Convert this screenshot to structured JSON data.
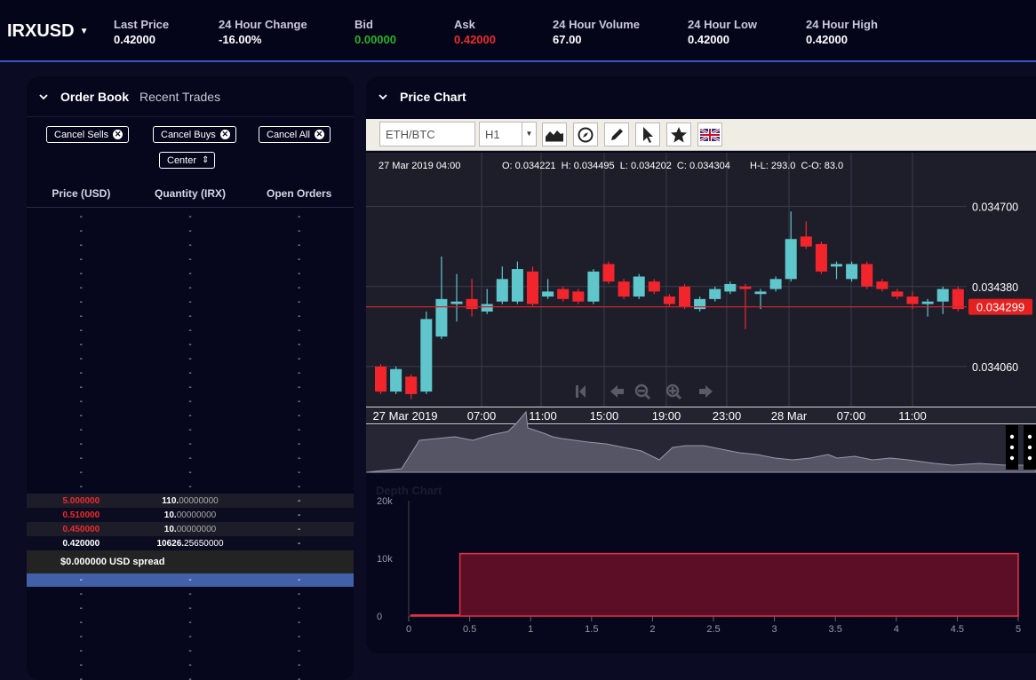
{
  "header": {
    "pair": "IRXUSD",
    "stats": [
      {
        "label": "Last Price",
        "value": "0.42000",
        "color": "#ffffff"
      },
      {
        "label": "24 Hour Change",
        "value": "-16.00%",
        "color": "#ffffff"
      },
      {
        "label": "Bid",
        "value": "0.00000",
        "color": "#27b326"
      },
      {
        "label": "Ask",
        "value": "0.42000",
        "color": "#ee2b2b"
      },
      {
        "label": "24 Hour Volume",
        "value": "67.00",
        "color": "#ffffff"
      },
      {
        "label": "24 Hour Low",
        "value": "0.42000",
        "color": "#ffffff"
      },
      {
        "label": "24 Hour High",
        "value": "0.42000",
        "color": "#ffffff"
      }
    ]
  },
  "order_book": {
    "tab_active": "Order Book",
    "tab_inactive": "Recent Trades",
    "cancel_sells": "Cancel Sells",
    "cancel_buys": "Cancel Buys",
    "cancel_all": "Cancel All",
    "center": "Center",
    "col_price": "Price (USD)",
    "col_qty": "Quantity (IRX)",
    "col_open": "Open Orders",
    "dash": "-",
    "sells": [
      {
        "price": "5.000000",
        "qty_int": "110.",
        "qty_dec": "00000000",
        "open": "-"
      },
      {
        "price": "0.510000",
        "qty_int": "10.",
        "qty_dec": "00000000",
        "open": "-"
      },
      {
        "price": "0.450000",
        "qty_int": "10.",
        "qty_dec": "00000000",
        "open": "-"
      },
      {
        "price": "0.420000",
        "qty_int": "10626.",
        "qty_dec": "25650000",
        "open": "-"
      }
    ],
    "spread": "$0.000000 USD spread"
  },
  "price_chart": {
    "title": "Price Chart",
    "symbol": "ETH/BTC",
    "interval": "H1",
    "icons": [
      "area-chart-icon",
      "compass-icon",
      "pencil-icon",
      "cursor-icon",
      "star-icon",
      "uk-flag-icon"
    ],
    "info_date": "27 Mar 2019 04:00",
    "info_ohlc": "O: 0.034221  H: 0.034495  L: 0.034202  C: 0.034304",
    "info_hl": "H-L: 293.0  C-O: 83.0",
    "y_ticks": [
      "0.034700",
      "0.034380",
      "0.034060"
    ],
    "current_price": "0.034299",
    "x_ticks": [
      "27 Mar 2019",
      "07:00",
      "11:00",
      "15:00",
      "19:00",
      "23:00",
      "28 Mar",
      "07:00",
      "11:00"
    ]
  },
  "chart_data": {
    "type": "candlestick",
    "ylim": [
      0.0339,
      0.03483
    ],
    "current": 0.034299,
    "candles": [
      {
        "o": 0.03406,
        "c": 0.03396,
        "h": 0.03407,
        "l": 0.03395
      },
      {
        "o": 0.03396,
        "c": 0.03405,
        "h": 0.03406,
        "l": 0.03395
      },
      {
        "o": 0.03402,
        "c": 0.03395,
        "h": 0.03403,
        "l": 0.03393
      },
      {
        "o": 0.03396,
        "c": 0.03425,
        "h": 0.03428,
        "l": 0.03395
      },
      {
        "o": 0.03418,
        "c": 0.03433,
        "h": 0.0345,
        "l": 0.03417
      },
      {
        "o": 0.03431,
        "c": 0.03432,
        "h": 0.03443,
        "l": 0.03424
      },
      {
        "o": 0.03433,
        "c": 0.03429,
        "h": 0.03441,
        "l": 0.03426
      },
      {
        "o": 0.03428,
        "c": 0.03431,
        "h": 0.03437,
        "l": 0.03427
      },
      {
        "o": 0.03432,
        "c": 0.03441,
        "h": 0.03446,
        "l": 0.03431
      },
      {
        "o": 0.03432,
        "c": 0.03445,
        "h": 0.03448,
        "l": 0.03431
      },
      {
        "o": 0.03444,
        "c": 0.03431,
        "h": 0.03446,
        "l": 0.0343
      },
      {
        "o": 0.03434,
        "c": 0.03436,
        "h": 0.03441,
        "l": 0.03433
      },
      {
        "o": 0.03437,
        "c": 0.03433,
        "h": 0.03438,
        "l": 0.03432
      },
      {
        "o": 0.03436,
        "c": 0.03432,
        "h": 0.03437,
        "l": 0.03431
      },
      {
        "o": 0.03432,
        "c": 0.03444,
        "h": 0.03445,
        "l": 0.03431
      },
      {
        "o": 0.03447,
        "c": 0.0344,
        "h": 0.03448,
        "l": 0.03439
      },
      {
        "o": 0.0344,
        "c": 0.03434,
        "h": 0.03441,
        "l": 0.03433
      },
      {
        "o": 0.03434,
        "c": 0.03442,
        "h": 0.03443,
        "l": 0.03433
      },
      {
        "o": 0.0344,
        "c": 0.03436,
        "h": 0.03441,
        "l": 0.03435
      },
      {
        "o": 0.03434,
        "c": 0.03431,
        "h": 0.03435,
        "l": 0.0343
      },
      {
        "o": 0.03438,
        "c": 0.0343,
        "h": 0.03439,
        "l": 0.03429
      },
      {
        "o": 0.03429,
        "c": 0.03433,
        "h": 0.03434,
        "l": 0.03428
      },
      {
        "o": 0.03433,
        "c": 0.03437,
        "h": 0.03438,
        "l": 0.03432
      },
      {
        "o": 0.03436,
        "c": 0.03439,
        "h": 0.0344,
        "l": 0.03435
      },
      {
        "o": 0.03438,
        "c": 0.03437,
        "h": 0.03439,
        "l": 0.03421
      },
      {
        "o": 0.03435,
        "c": 0.03436,
        "h": 0.03437,
        "l": 0.03429
      },
      {
        "o": 0.03437,
        "c": 0.03441,
        "h": 0.03442,
        "l": 0.03436
      },
      {
        "o": 0.03441,
        "c": 0.03457,
        "h": 0.03468,
        "l": 0.0344
      },
      {
        "o": 0.03458,
        "c": 0.03454,
        "h": 0.03464,
        "l": 0.03453
      },
      {
        "o": 0.03455,
        "c": 0.03444,
        "h": 0.03456,
        "l": 0.03443
      },
      {
        "o": 0.03446,
        "c": 0.03447,
        "h": 0.03448,
        "l": 0.03441
      },
      {
        "o": 0.03441,
        "c": 0.03447,
        "h": 0.03448,
        "l": 0.0344
      },
      {
        "o": 0.03447,
        "c": 0.03438,
        "h": 0.03448,
        "l": 0.03437
      },
      {
        "o": 0.0344,
        "c": 0.03437,
        "h": 0.03441,
        "l": 0.03436
      },
      {
        "o": 0.03436,
        "c": 0.03434,
        "h": 0.03437,
        "l": 0.03433
      },
      {
        "o": 0.03434,
        "c": 0.03431,
        "h": 0.03436,
        "l": 0.03429
      },
      {
        "o": 0.03431,
        "c": 0.03432,
        "h": 0.03433,
        "l": 0.03426
      },
      {
        "o": 0.03432,
        "c": 0.03437,
        "h": 0.03438,
        "l": 0.03427
      },
      {
        "o": 0.03437,
        "c": 0.03429,
        "h": 0.03438,
        "l": 0.03428
      }
    ],
    "depth": {
      "title": "Depth Chart",
      "x_ticks": [
        "0",
        "0.5",
        "1",
        "1.5",
        "2",
        "2.5",
        "3",
        "3.5",
        "4",
        "4.5",
        "5"
      ],
      "y_ticks": [
        "20k",
        "10k",
        "0"
      ],
      "steps": [
        {
          "x": 0.02,
          "y": 200
        },
        {
          "x": 0.42,
          "y": 200
        },
        {
          "x": 0.42,
          "y": 10826
        },
        {
          "x": 5.0,
          "y": 10826
        }
      ]
    }
  }
}
